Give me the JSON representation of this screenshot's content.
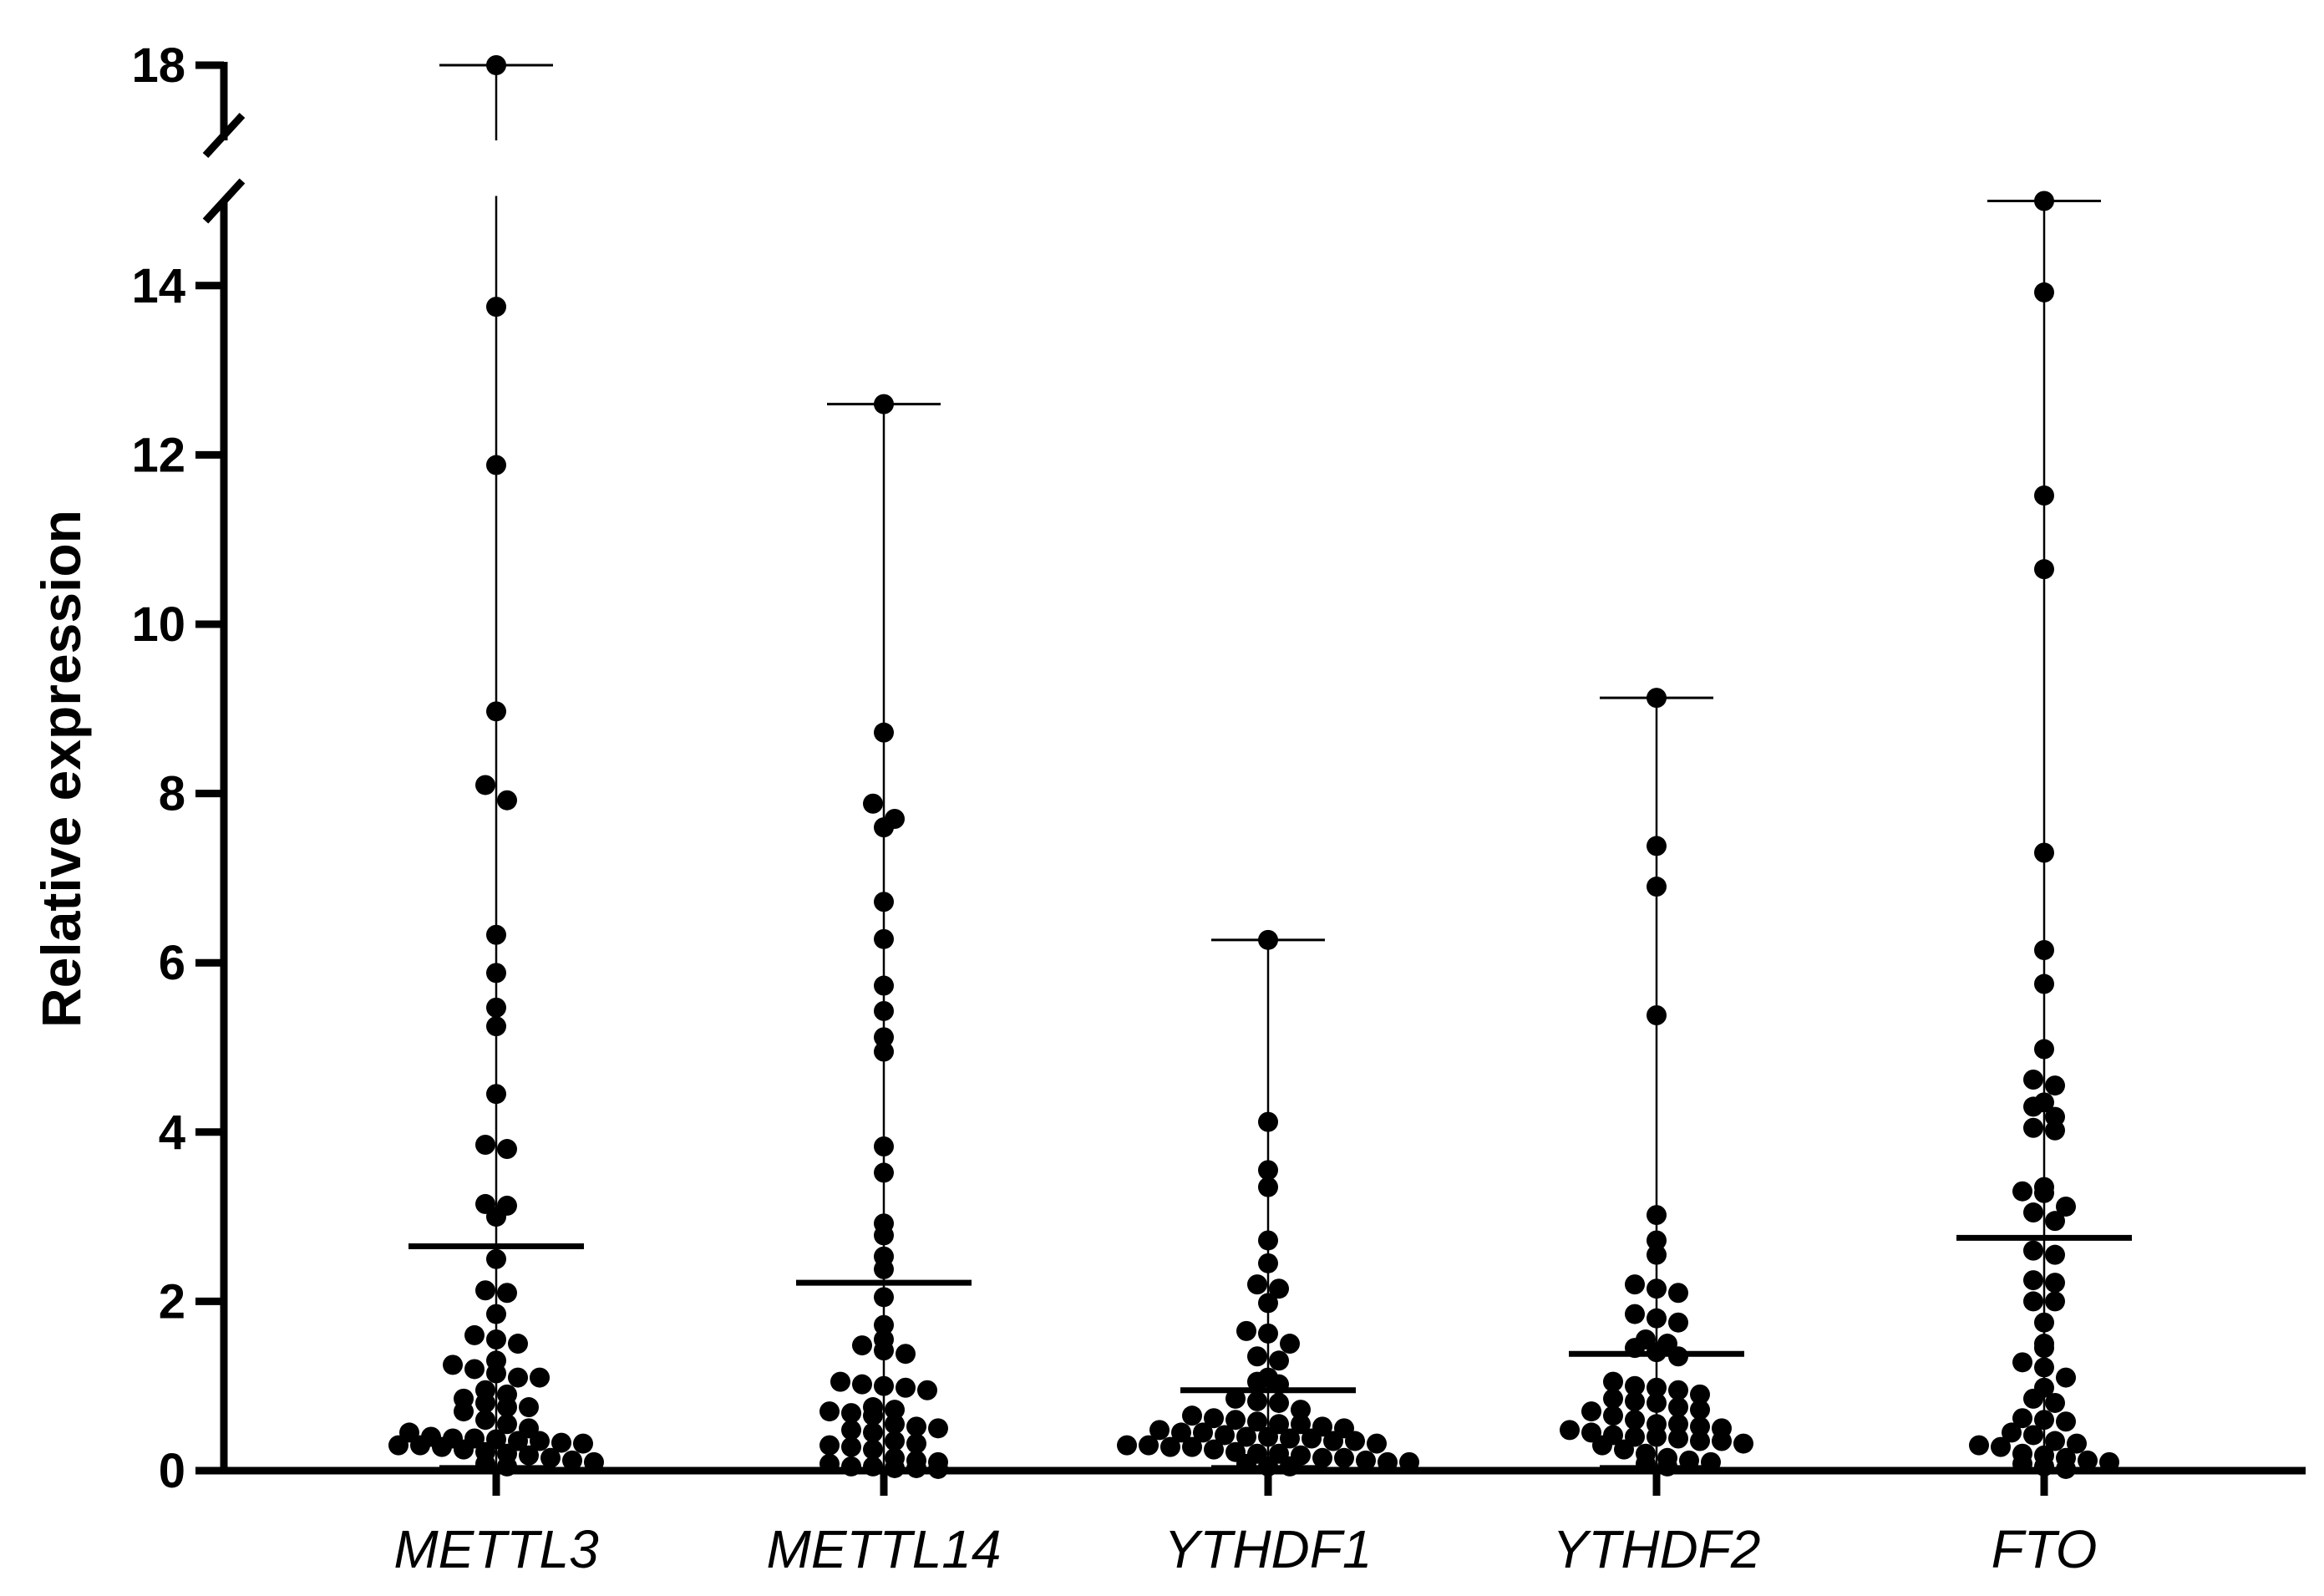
{
  "chart_data": {
    "type": "scatter",
    "subtype": "dot-plot-with-mean-and-range",
    "title": "",
    "xlabel": "",
    "ylabel": "Relative expression",
    "y_axis": {
      "ticks": [
        0,
        2,
        4,
        6,
        8,
        10,
        12,
        14,
        18
      ],
      "tick_labels": [
        "0",
        "2",
        "4",
        "6",
        "8",
        "10",
        "12",
        "14",
        "18"
      ],
      "segments": [
        [
          0,
          15
        ],
        [
          17,
          18
        ]
      ],
      "axis_break": [
        15,
        17
      ]
    },
    "grid": false,
    "legend": "none",
    "categories": [
      "METTL3",
      "METTL14",
      "YTHDF1",
      "YTHDF2",
      "FTO"
    ],
    "series": [
      {
        "category": "METTL3",
        "mean": 2.65,
        "min": 0.05,
        "max": 18.0,
        "values": [
          18.0,
          13.75,
          11.88,
          8.97,
          8.1,
          7.92,
          6.33,
          5.88,
          5.47,
          5.25,
          4.45,
          3.85,
          3.8,
          3.15,
          3.13,
          3.0,
          2.5,
          2.13,
          2.1,
          1.85,
          1.6,
          1.55,
          1.5,
          1.3,
          1.25,
          1.2,
          1.15,
          1.1,
          1.1,
          0.95,
          0.9,
          0.85,
          0.8,
          0.75,
          0.75,
          0.7,
          0.6,
          0.55,
          0.5,
          0.45,
          0.4,
          0.38,
          0.38,
          0.37,
          0.35,
          0.35,
          0.33,
          0.32,
          0.3,
          0.3,
          0.28,
          0.25,
          0.22,
          0.2,
          0.18,
          0.15,
          0.12,
          0.1,
          0.08,
          0.05
        ]
      },
      {
        "category": "METTL14",
        "mean": 2.22,
        "min": 0.02,
        "max": 12.6,
        "values": [
          12.6,
          8.72,
          7.88,
          7.7,
          7.6,
          6.72,
          6.28,
          5.73,
          5.43,
          5.12,
          4.95,
          3.83,
          3.52,
          2.92,
          2.78,
          2.53,
          2.38,
          2.05,
          1.72,
          1.55,
          1.48,
          1.42,
          1.38,
          1.05,
          1.02,
          1.0,
          0.98,
          0.95,
          0.75,
          0.72,
          0.7,
          0.68,
          0.65,
          0.55,
          0.52,
          0.5,
          0.48,
          0.45,
          0.35,
          0.32,
          0.3,
          0.28,
          0.25,
          0.15,
          0.12,
          0.1,
          0.08,
          0.05,
          0.05,
          0.03,
          0.03,
          0.02
        ]
      },
      {
        "category": "YTHDF1",
        "mean": 0.95,
        "min": 0.05,
        "max": 6.27,
        "values": [
          6.27,
          4.12,
          3.55,
          3.35,
          2.72,
          2.45,
          2.2,
          2.15,
          1.98,
          1.65,
          1.62,
          1.5,
          1.35,
          1.3,
          1.1,
          1.05,
          1.02,
          0.85,
          0.82,
          0.8,
          0.72,
          0.65,
          0.62,
          0.6,
          0.58,
          0.55,
          0.55,
          0.52,
          0.5,
          0.48,
          0.45,
          0.45,
          0.42,
          0.4,
          0.4,
          0.38,
          0.38,
          0.35,
          0.35,
          0.32,
          0.3,
          0.3,
          0.28,
          0.28,
          0.25,
          0.22,
          0.2,
          0.2,
          0.18,
          0.15,
          0.15,
          0.12,
          0.1,
          0.1,
          0.08,
          0.05,
          0.05
        ]
      },
      {
        "category": "YTHDF2",
        "mean": 1.38,
        "min": 0.05,
        "max": 9.13,
        "values": [
          9.13,
          7.38,
          6.9,
          5.38,
          3.02,
          2.72,
          2.55,
          2.2,
          2.15,
          2.1,
          1.85,
          1.8,
          1.75,
          1.55,
          1.5,
          1.45,
          1.4,
          1.35,
          1.05,
          1.0,
          0.98,
          0.95,
          0.9,
          0.85,
          0.82,
          0.8,
          0.75,
          0.72,
          0.7,
          0.65,
          0.6,
          0.55,
          0.55,
          0.52,
          0.5,
          0.48,
          0.45,
          0.42,
          0.4,
          0.4,
          0.38,
          0.35,
          0.35,
          0.32,
          0.3,
          0.25,
          0.2,
          0.15,
          0.12,
          0.1,
          0.08,
          0.05
        ]
      },
      {
        "category": "FTO",
        "mean": 2.75,
        "min": 0.02,
        "max": 15.0,
        "values": [
          15.0,
          13.92,
          11.52,
          10.65,
          7.3,
          6.15,
          5.75,
          4.98,
          4.62,
          4.55,
          4.35,
          4.3,
          4.18,
          4.05,
          4.02,
          3.35,
          3.3,
          3.28,
          3.12,
          3.05,
          2.95,
          2.6,
          2.55,
          2.25,
          2.22,
          2.0,
          2.0,
          1.75,
          1.5,
          1.45,
          1.28,
          1.22,
          1.1,
          0.98,
          0.85,
          0.8,
          0.62,
          0.6,
          0.58,
          0.45,
          0.42,
          0.35,
          0.32,
          0.3,
          0.28,
          0.2,
          0.18,
          0.15,
          0.12,
          0.1,
          0.08,
          0.05,
          0.02
        ]
      }
    ]
  }
}
